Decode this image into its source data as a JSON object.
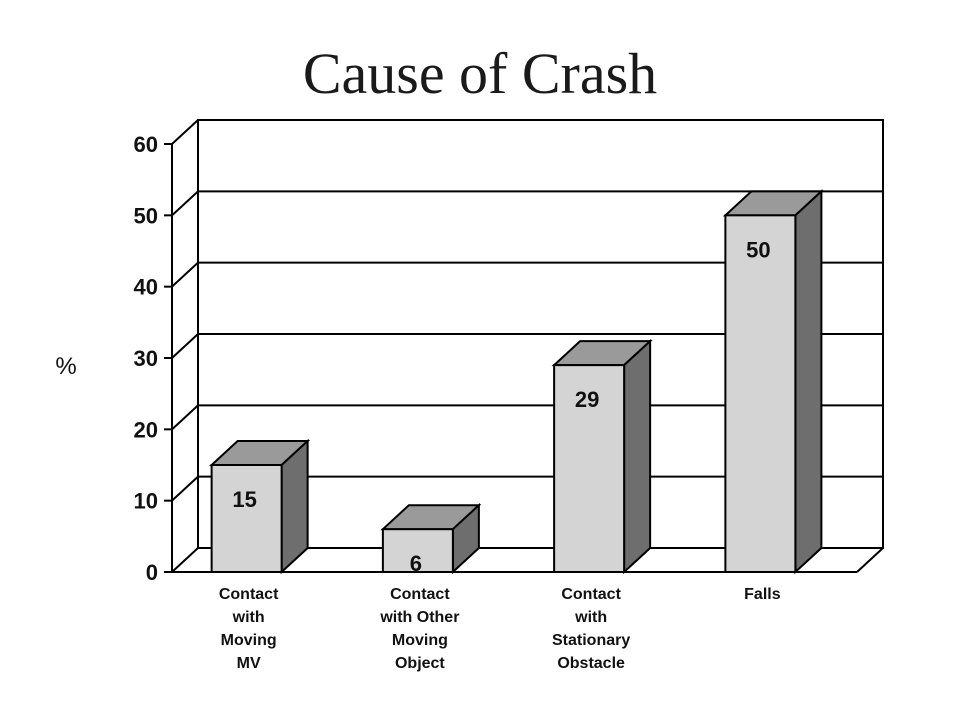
{
  "chart_data": {
    "type": "bar",
    "title": "Cause of Crash",
    "ylabel": "%",
    "xlabel": "",
    "ylim": [
      0,
      60
    ],
    "yticks": [
      0,
      10,
      20,
      30,
      40,
      50,
      60
    ],
    "grid": true,
    "style": "3d",
    "categories": [
      [
        "Contact",
        "with",
        "Moving",
        "MV"
      ],
      [
        "Contact",
        "with Other",
        "Moving",
        "Object"
      ],
      [
        "Contact",
        "with",
        "Stationary",
        "Obstacle"
      ],
      [
        "Falls"
      ]
    ],
    "values": [
      15,
      6,
      29,
      50
    ],
    "data_labels": [
      "15",
      "6",
      "29",
      "50"
    ],
    "colors": {
      "bar_front": "#d4d4d4",
      "bar_top": "#9a9a9a",
      "bar_side": "#6e6e6e",
      "line": "#000000"
    }
  }
}
